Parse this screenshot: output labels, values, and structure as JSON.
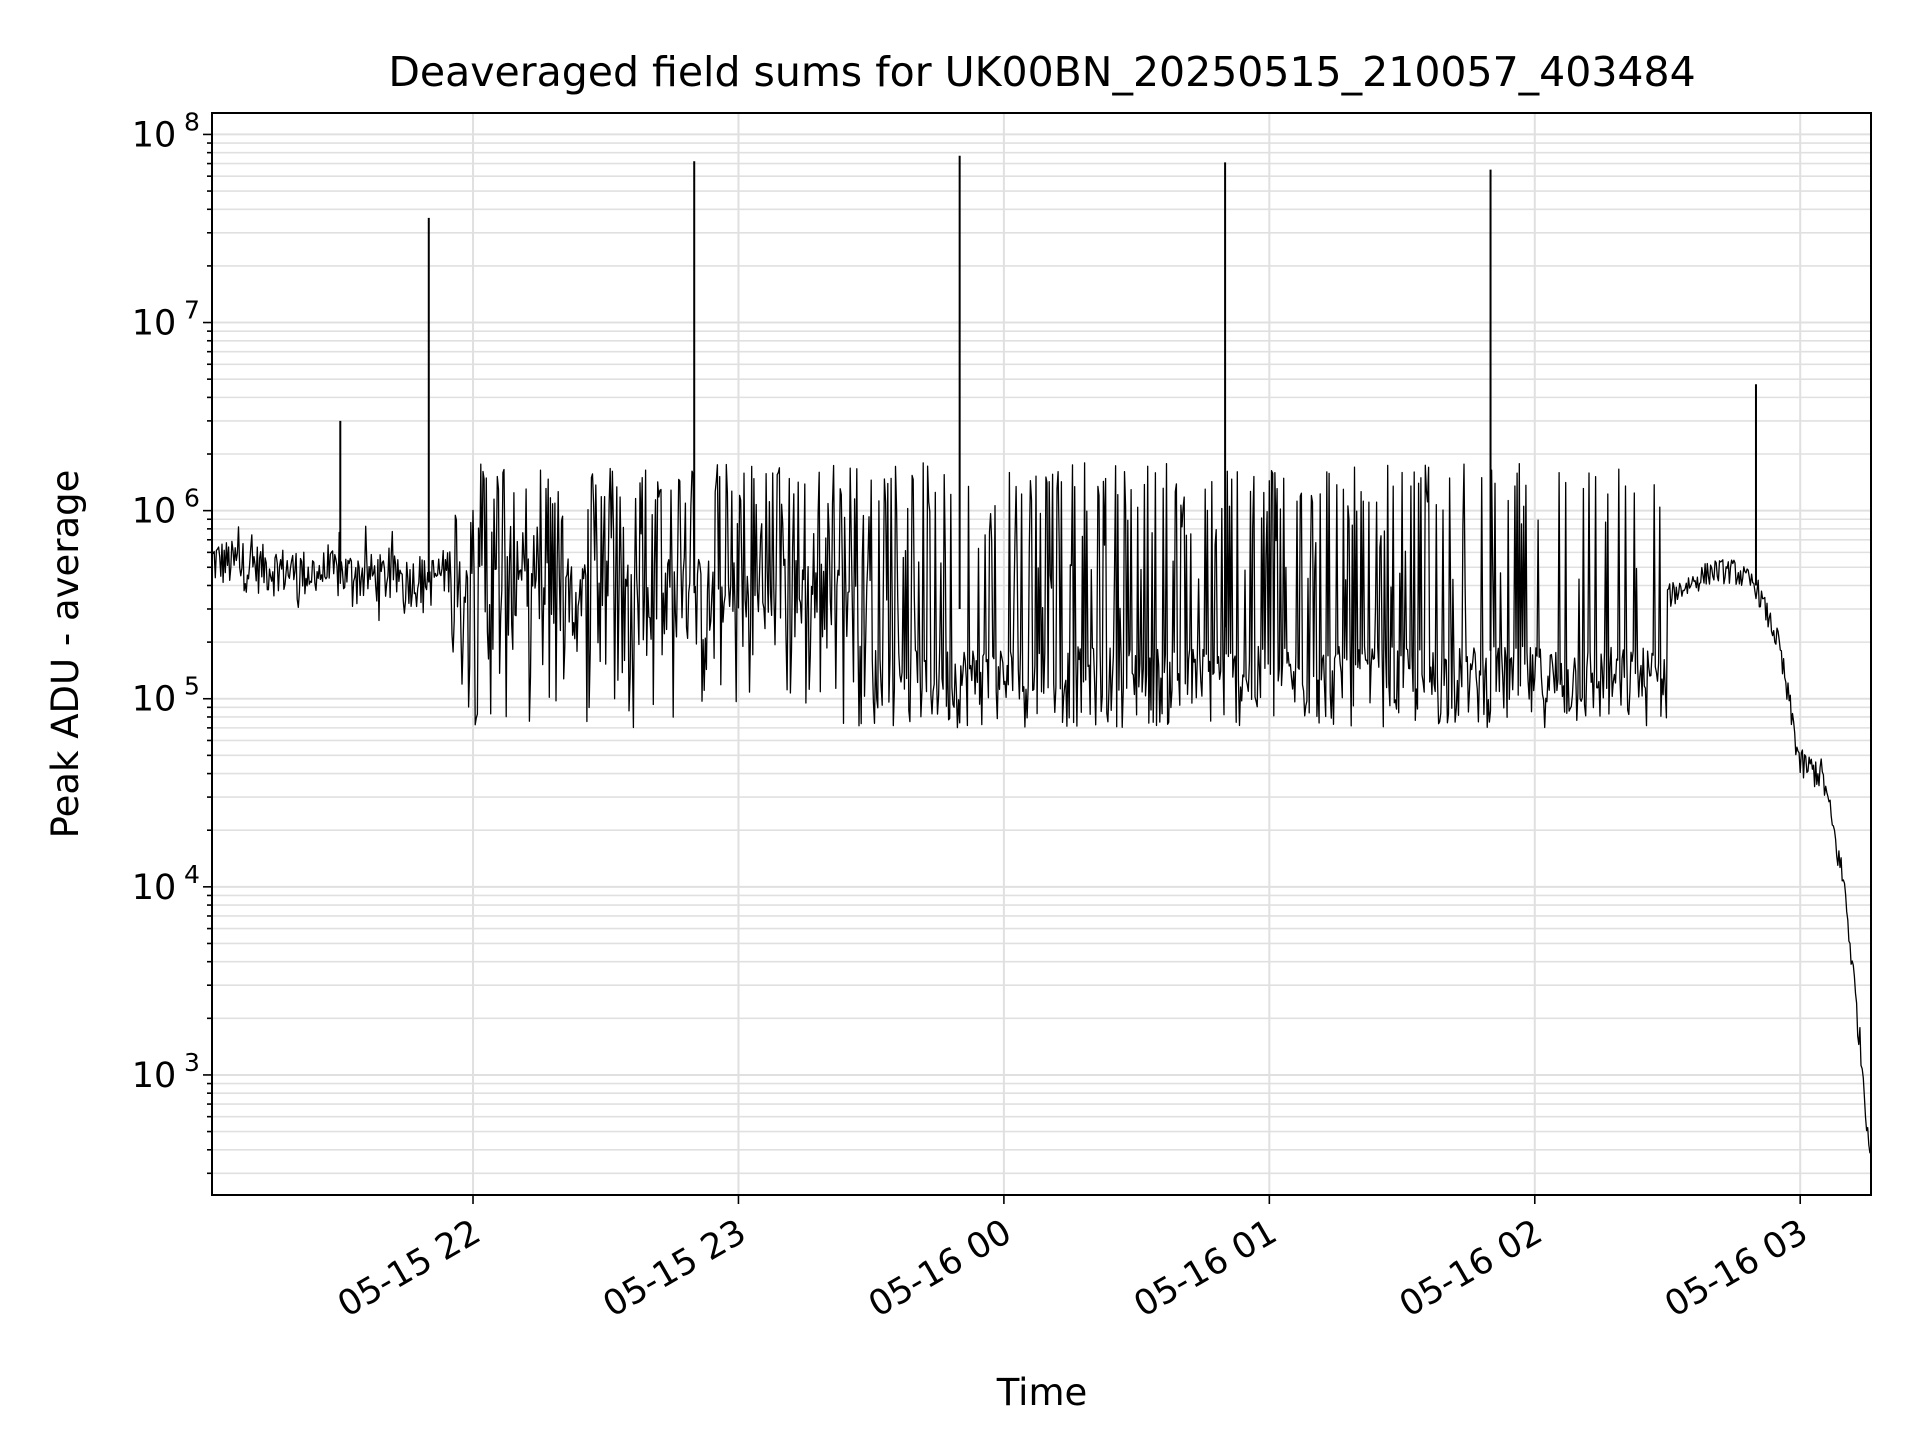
{
  "chart_data": {
    "type": "line",
    "title": "Deaveraged field sums for UK00BN_20250515_210057_403484",
    "xlabel": "Time",
    "ylabel": "Peak ADU - average",
    "y_scale": "log",
    "ylim": [
      230,
      130000000
    ],
    "xlim": [
      "2025-05-15 21:01",
      "2025-05-16 03:16"
    ],
    "grid": true,
    "line_color": "#000000",
    "grid_color": "#e0e0e0",
    "x_ticks": [
      {
        "value": "2025-05-15 22:00",
        "label": "05-15 22"
      },
      {
        "value": "2025-05-15 23:00",
        "label": "05-15 23"
      },
      {
        "value": "2025-05-16 00:00",
        "label": "05-16 00"
      },
      {
        "value": "2025-05-16 01:00",
        "label": "05-16 01"
      },
      {
        "value": "2025-05-16 02:00",
        "label": "05-16 02"
      },
      {
        "value": "2025-05-16 03:00",
        "label": "05-16 03"
      }
    ],
    "y_ticks": [
      {
        "value": 1000,
        "base": "10",
        "exp": "3"
      },
      {
        "value": 10000,
        "base": "10",
        "exp": "4"
      },
      {
        "value": 100000,
        "base": "10",
        "exp": "5"
      },
      {
        "value": 1000000,
        "base": "10",
        "exp": "6"
      },
      {
        "value": 10000000,
        "base": "10",
        "exp": "7"
      },
      {
        "value": 100000000,
        "base": "10",
        "exp": "8"
      }
    ],
    "series": [
      {
        "x": [
          "2025-05-15 21:01",
          "2025-05-15 21:10",
          "2025-05-15 21:20",
          "2025-05-15 21:30",
          "2025-05-15 21:40",
          "2025-05-15 21:50",
          "2025-05-15 22:00",
          "2025-05-15 22:10",
          "2025-05-15 22:20",
          "2025-05-15 22:30",
          "2025-05-15 22:40",
          "2025-05-15 22:50",
          "2025-05-15 23:00",
          "2025-05-15 23:10",
          "2025-05-15 23:20",
          "2025-05-15 23:30",
          "2025-05-15 23:40",
          "2025-05-15 23:50",
          "2025-05-16 00:00",
          "2025-05-16 00:10",
          "2025-05-16 00:20",
          "2025-05-16 00:30",
          "2025-05-16 00:40",
          "2025-05-16 00:50",
          "2025-05-16 01:00",
          "2025-05-16 01:10",
          "2025-05-16 01:20",
          "2025-05-16 01:30",
          "2025-05-16 01:40",
          "2025-05-16 01:50",
          "2025-05-16 02:00",
          "2025-05-16 02:10",
          "2025-05-16 02:20",
          "2025-05-16 02:30",
          "2025-05-16 02:40",
          "2025-05-16 02:45",
          "2025-05-16 02:50",
          "2025-05-16 02:55",
          "2025-05-16 03:00",
          "2025-05-16 03:05",
          "2025-05-16 03:10",
          "2025-05-16 03:13",
          "2025-05-16 03:16"
        ],
        "y": [
          550000,
          520000,
          480000,
          470000,
          450000,
          430000,
          600000,
          700000,
          650000,
          560000,
          470000,
          400000,
          380000,
          360000,
          340000,
          330000,
          320000,
          300000,
          290000,
          280000,
          270000,
          260000,
          250000,
          240000,
          230000,
          220000,
          210000,
          200000,
          190000,
          180000,
          150000,
          170000,
          250000,
          350000,
          480000,
          480000,
          400000,
          200000,
          45000,
          40000,
          10000,
          2000,
          350
        ]
      }
    ],
    "spikes": [
      {
        "x": "2025-05-15 21:30",
        "y": 3000000
      },
      {
        "x": "2025-05-15 21:50",
        "y": 36000000
      },
      {
        "x": "2025-05-15 22:50",
        "y": 72000000
      },
      {
        "x": "2025-05-15 23:50",
        "y": 77000000
      },
      {
        "x": "2025-05-16 00:50",
        "y": 71000000
      },
      {
        "x": "2025-05-16 01:50",
        "y": 65000000
      },
      {
        "x": "2025-05-16 02:50",
        "y": 4700000
      }
    ]
  }
}
